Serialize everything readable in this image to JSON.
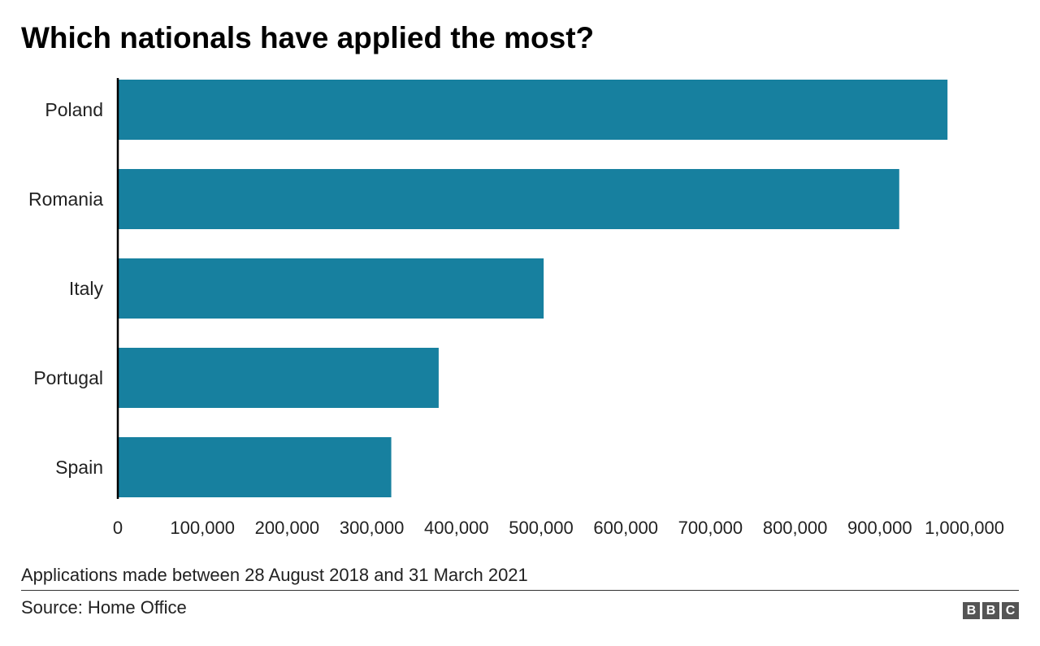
{
  "chart_data": {
    "type": "bar",
    "orientation": "horizontal",
    "title": "Which nationals have applied the most?",
    "categories": [
      "Poland",
      "Romania",
      "Italy",
      "Portugal",
      "Spain"
    ],
    "values": [
      980000,
      923000,
      503000,
      379000,
      323000
    ],
    "xlim": [
      0,
      1000000
    ],
    "xticks": [
      0,
      100000,
      200000,
      300000,
      400000,
      500000,
      600000,
      700000,
      800000,
      900000,
      1000000
    ],
    "xtick_labels": [
      "0",
      "100,000",
      "200,000",
      "300,000",
      "400,000",
      "500,000",
      "600,000",
      "700,000",
      "800,000",
      "900,000",
      "1,000,000"
    ],
    "bar_color": "#17809f",
    "axis_color": "#000000",
    "grid": false,
    "legend": "none"
  },
  "footnote": "Applications made between 28 August 2018 and 31 March 2021",
  "source": "Source: Home Office",
  "logo": {
    "letters": [
      "B",
      "B",
      "C"
    ]
  }
}
